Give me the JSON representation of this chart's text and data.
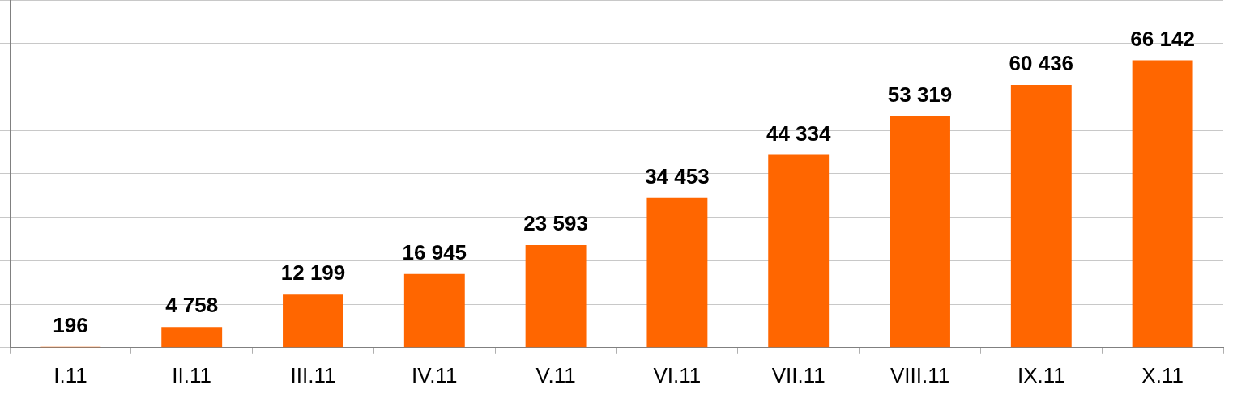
{
  "chart_data": {
    "type": "bar",
    "categories": [
      "I.11",
      "II.11",
      "III.11",
      "IV.11",
      "V.11",
      "VI.11",
      "VII.11",
      "VIII.11",
      "IX.11",
      "X.11"
    ],
    "values": [
      196,
      4758,
      12199,
      16945,
      23593,
      34453,
      44334,
      53319,
      60436,
      66142
    ],
    "value_labels": [
      "196",
      "4 758",
      "12 199",
      "16 945",
      "23 593",
      "34 453",
      "44 334",
      "53 319",
      "60 436",
      "66 142"
    ],
    "color": "#ff6600",
    "ylim": [
      0,
      80000
    ],
    "yticks": [
      {
        "value": 0,
        "label": null
      },
      {
        "value": 10000,
        "label": null
      },
      {
        "value": 20000,
        "label": null
      },
      {
        "value": 30000,
        "label": null
      },
      {
        "value": 40000,
        "label": null
      },
      {
        "value": 50000,
        "label": null
      },
      {
        "value": 60000,
        "label": null
      },
      {
        "value": 70000,
        "label": null
      },
      {
        "value": 80000,
        "label": null
      }
    ],
    "grid": "y",
    "tick_labels": "x",
    "legend": false
  }
}
